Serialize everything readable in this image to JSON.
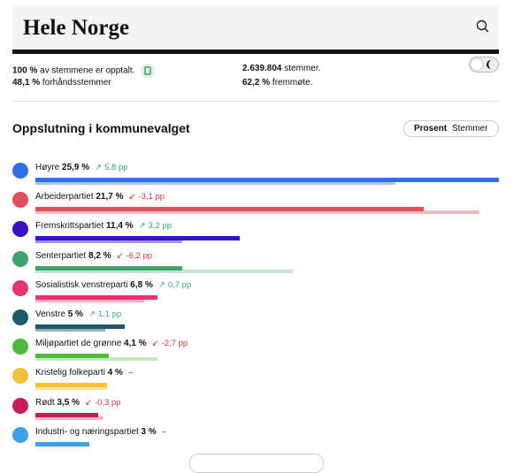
{
  "header": {
    "title": "Hele Norge"
  },
  "stats": [
    {
      "value": "100 %",
      "text": "av stemmene er opptalt."
    },
    {
      "value": "2.639.804",
      "text": "stemmer."
    },
    {
      "value": "48,1 %",
      "text": "forhåndsstemmer"
    },
    {
      "value": "62,2 %",
      "text": "fremmøte."
    }
  ],
  "section": {
    "title": "Oppslutning i kommunevalget",
    "toggle": [
      "Prosent",
      "Stemmer"
    ]
  },
  "parties": [
    {
      "name": "Høyre",
      "share": {
        "value": 25.9,
        "label": "25,9 %"
      },
      "change": {
        "value": 5.8,
        "label": "5,8 pp"
      },
      "previous": 20.1,
      "color": "#2f6ee6",
      "previous_color": "#a8c3ee"
    },
    {
      "name": "Arbeiderpartiet",
      "share": {
        "value": 21.7,
        "label": "21,7 %"
      },
      "change": {
        "value": -3.1,
        "label": "-3,1 pp"
      },
      "previous": 24.8,
      "color": "#e0505a",
      "previous_color": "#f4bcc0"
    },
    {
      "name": "Fremskrittspartiet",
      "share": {
        "value": 11.4,
        "label": "11,4 %"
      },
      "change": {
        "value": 3.2,
        "label": "3,2 pp"
      },
      "previous": 8.2,
      "color": "#3a10c6",
      "previous_color": "#a496ea"
    },
    {
      "name": "Senterpartiet",
      "share": {
        "value": 8.2,
        "label": "8,2 %"
      },
      "change": {
        "value": -6.2,
        "label": "-6,2 pp"
      },
      "previous": 14.4,
      "color": "#3ea26c",
      "previous_color": "#c3e4cf"
    },
    {
      "name": "Sosialistisk venstreparti",
      "share": {
        "value": 6.8,
        "label": "6,8 %"
      },
      "change": {
        "value": 0.7,
        "label": "0,7 pp"
      },
      "previous": 6.1,
      "color": "#e8346c",
      "previous_color": "#f5a9c0"
    },
    {
      "name": "Venstre",
      "share": {
        "value": 5,
        "label": "5 %"
      },
      "change": {
        "value": 1.1,
        "label": "1,1 pp"
      },
      "previous": 3.9,
      "color": "#1e5a68",
      "previous_color": "#8fb2ba"
    },
    {
      "name": "Miljøpartiet de grønne",
      "share": {
        "value": 4.1,
        "label": "4,1 %"
      },
      "change": {
        "value": -2.7,
        "label": "-2,7 pp"
      },
      "previous": 6.8,
      "color": "#4cba3a",
      "previous_color": "#c2e9b8"
    },
    {
      "name": "Kristelig folkeparti",
      "share": {
        "value": 4,
        "label": "4 %"
      },
      "change": {
        "value": null,
        "label": "–"
      },
      "previous": 4,
      "color": "#f0c43a",
      "previous_color": "#f7e19c"
    },
    {
      "name": "Rødt",
      "share": {
        "value": 3.5,
        "label": "3,5 %"
      },
      "change": {
        "value": -0.3,
        "label": "-0,3 pp"
      },
      "previous": 3.8,
      "color": "#c41d57",
      "previous_color": "#f2b6c9"
    },
    {
      "name": "Industri- og næringspartiet",
      "share": {
        "value": 3,
        "label": "3 %"
      },
      "change": {
        "value": null,
        "label": "–"
      },
      "previous": null,
      "color": "#3f9fe8",
      "previous_color": "#a6d2f4"
    }
  ]
}
